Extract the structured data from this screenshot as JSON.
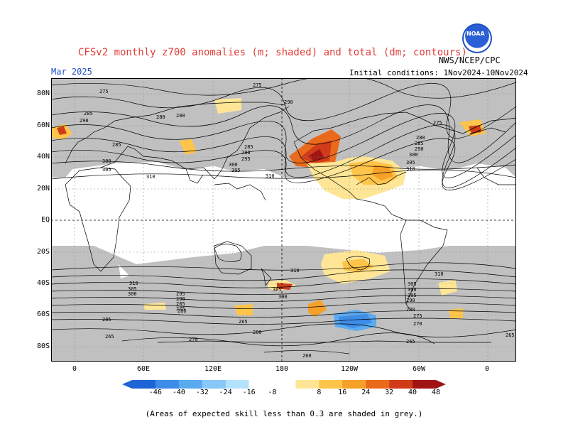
{
  "header": {
    "title": "CFSv2 monthly z700 anomalies (m; shaded) and total (dm; contours)",
    "agency": "NWS/NCEP/CPC",
    "month": "Mar 2025",
    "initial_conditions": "Initial conditions: 1Nov2024-10Nov2024",
    "logo_text": "NOAA"
  },
  "axes": {
    "y_labels": [
      "80N",
      "60N",
      "40N",
      "20N",
      "EQ",
      "20S",
      "40S",
      "60S",
      "80S"
    ],
    "x_labels": [
      "0",
      "60E",
      "120E",
      "180",
      "120W",
      "60W",
      "0"
    ]
  },
  "contour_labels": [
    "275",
    "285",
    "290",
    "280",
    "295",
    "300",
    "305",
    "310",
    "270",
    "265",
    "260"
  ],
  "colorbar": {
    "ticks": [
      "-46",
      "-40",
      "-32",
      "-24",
      "-16",
      "-8",
      "8",
      "16",
      "24",
      "32",
      "40",
      "48"
    ],
    "colors": [
      "#1e64d6",
      "#3c8ce8",
      "#5aaaf0",
      "#87c8f8",
      "#b4e2fc",
      "#ffffff",
      "#ffe696",
      "#ffc44a",
      "#f5a028",
      "#ea6a1c",
      "#d03c1a",
      "#a01414"
    ]
  },
  "footnote": "(Areas of expected skill less than 0.3 are shaded in grey.)"
}
